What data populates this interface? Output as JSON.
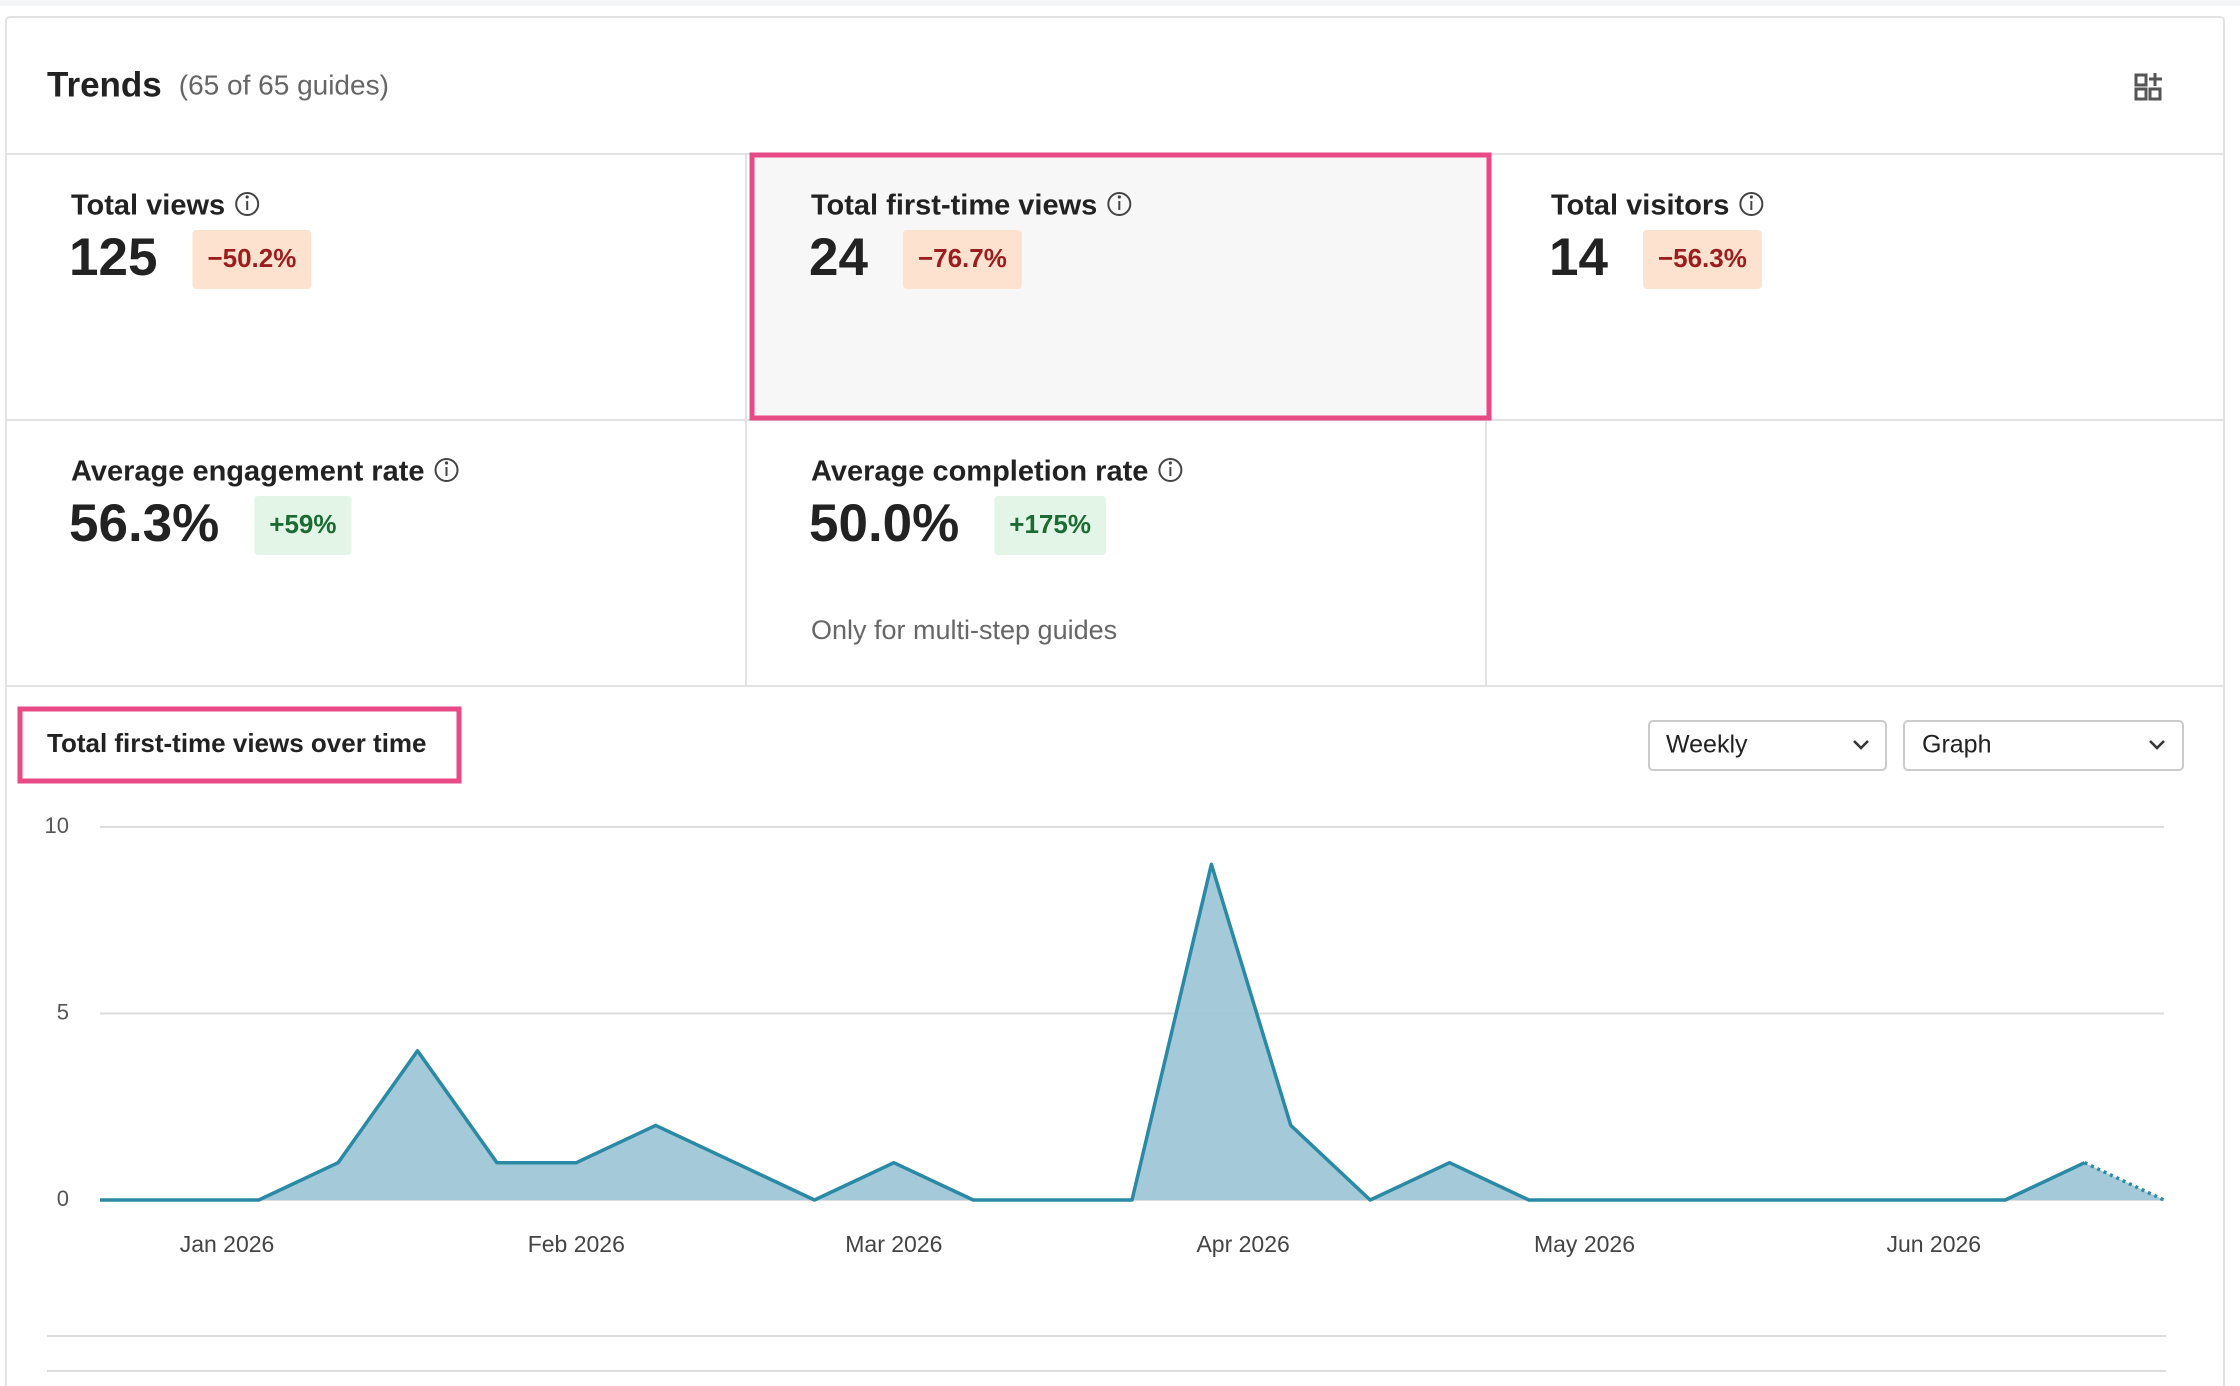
{
  "header": {
    "title": "Trends",
    "subtitle": "(65 of 65 guides)"
  },
  "metrics": [
    {
      "label": "Total views",
      "value": "125",
      "change": "−50.2%",
      "direction": "down"
    },
    {
      "label": "Total first-time views",
      "value": "24",
      "change": "−76.7%",
      "direction": "down"
    },
    {
      "label": "Total visitors",
      "value": "14",
      "change": "−56.3%",
      "direction": "down"
    },
    {
      "label": "Average engagement rate",
      "value": "56.3%",
      "change": "+59%",
      "direction": "up"
    },
    {
      "label": "Average completion rate",
      "value": "50.0%",
      "change": "+175%",
      "direction": "up",
      "note": "Only for multi-step guides"
    }
  ],
  "selected_metric": 1,
  "chart_section": {
    "title": "Total first-time views over time",
    "interval": "Weekly",
    "view": "Graph"
  },
  "chart_data": {
    "type": "area",
    "x": [
      0,
      1,
      2,
      3,
      4,
      5,
      6,
      7,
      8,
      9,
      10,
      11,
      12,
      13,
      14,
      15,
      16,
      17,
      18,
      19,
      20,
      21,
      22,
      23,
      24,
      25,
      26
    ],
    "values": [
      0,
      0,
      0,
      1,
      4,
      1,
      1,
      2,
      1,
      0,
      1,
      0,
      0,
      0,
      9,
      2,
      0,
      1,
      0,
      0,
      0,
      0,
      0,
      0,
      0,
      1,
      0
    ],
    "xlim": [
      0,
      26
    ],
    "xticks": [
      {
        "value": 1.6,
        "label": "Jan 2026"
      },
      {
        "value": 6,
        "label": "Feb 2026"
      },
      {
        "value": 10,
        "label": "Mar 2026"
      },
      {
        "value": 14.4,
        "label": "Apr 2026"
      },
      {
        "value": 18.7,
        "label": "May 2026"
      },
      {
        "value": 23.1,
        "label": "Jun 2026"
      }
    ],
    "ylim": [
      0,
      10
    ],
    "yticks": [
      0,
      5,
      10
    ],
    "grid": true,
    "color": "#2a8aa5",
    "fill": "#9fc6d6",
    "last_segment_dotted": true
  }
}
